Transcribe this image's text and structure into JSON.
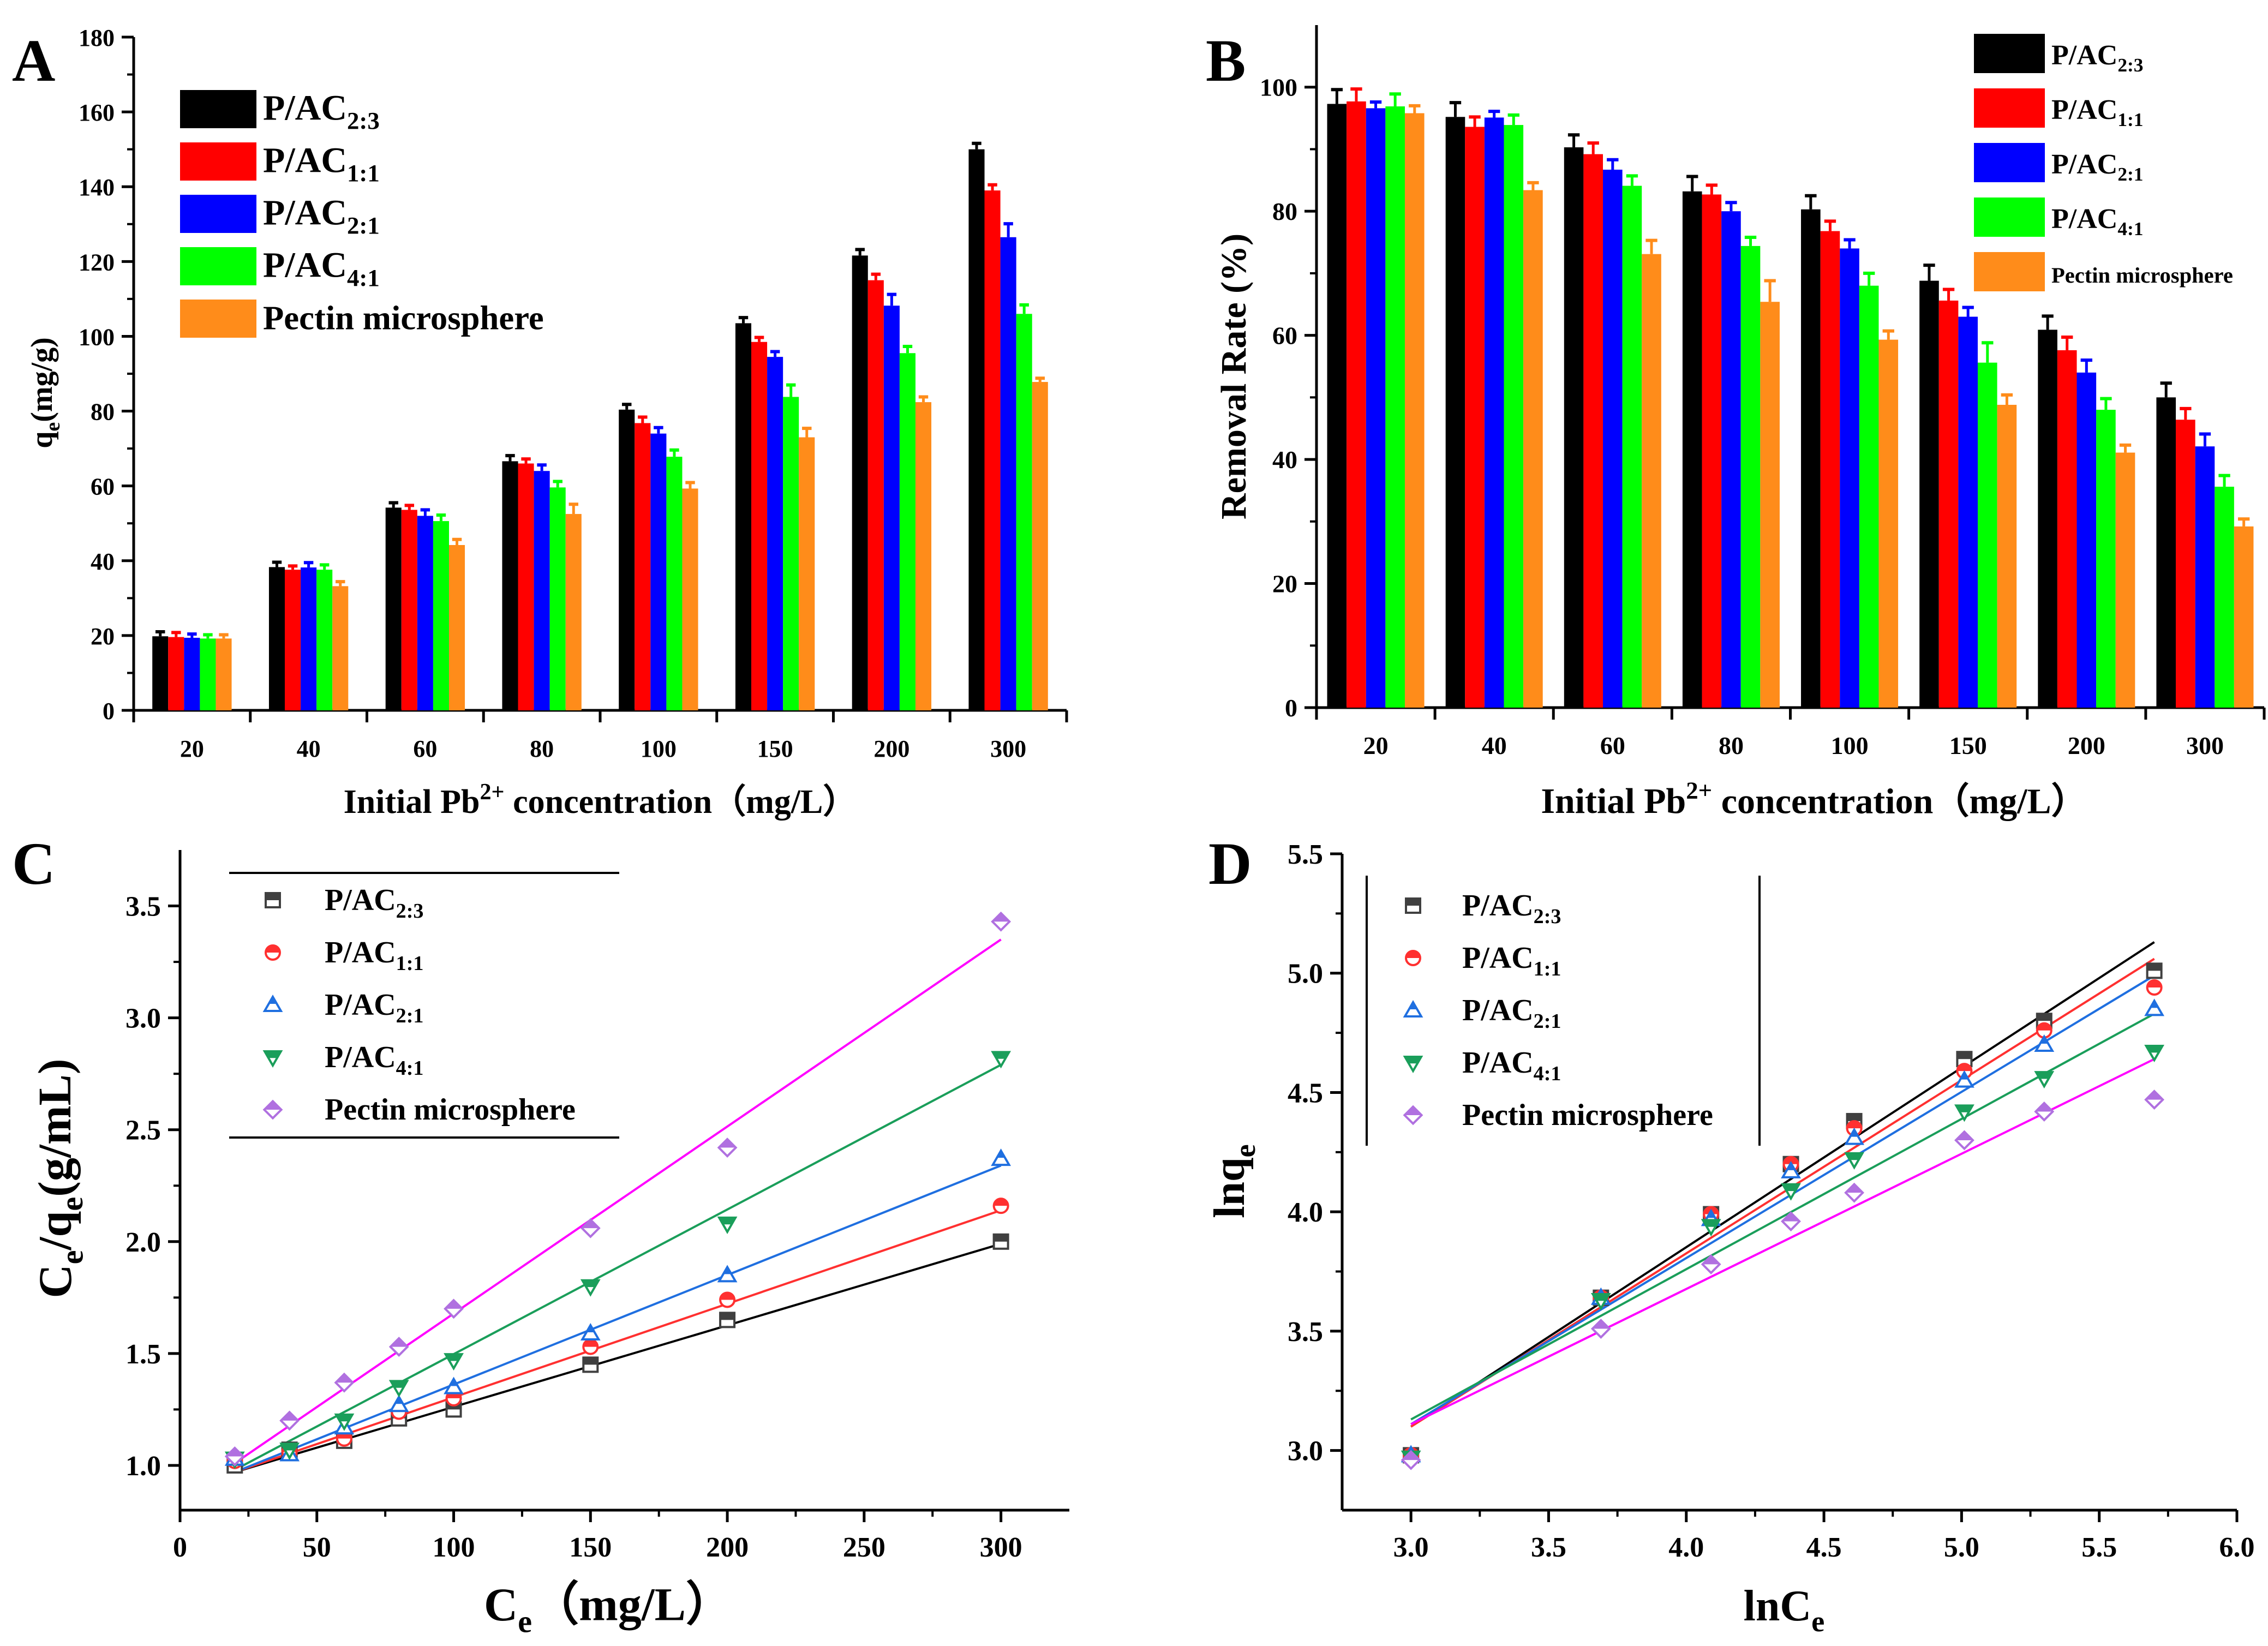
{
  "colors": {
    "P/AC 2:3": "#000000",
    "P/AC 1:1": "#ff0000",
    "P/AC 2:1": "#0000ff",
    "P/AC 4:1": "#00ff00",
    "Pectin microsphere": "#ff8c1a"
  },
  "chart_data": [
    {
      "panel": "A",
      "type": "bar",
      "title": "",
      "xlabel": "Initial Pb²⁺ concentration（mg/L）",
      "ylabel": "qe(mg/g)",
      "ylim": [
        0,
        180
      ],
      "yticks": [
        0,
        20,
        40,
        60,
        80,
        100,
        120,
        140,
        160,
        180
      ],
      "categories": [
        "20",
        "40",
        "60",
        "80",
        "100",
        "150",
        "200",
        "300"
      ],
      "legend_position": "top-left",
      "series": [
        {
          "name": "P/AC 2:3",
          "base": "P/AC",
          "sub": "2:3",
          "values": [
            19.8,
            38.3,
            54.2,
            66.6,
            80.4,
            103.5,
            121.6,
            150.0
          ],
          "errors": [
            1.2,
            1.3,
            1.3,
            1.5,
            1.4,
            1.5,
            1.6,
            1.6
          ]
        },
        {
          "name": "P/AC 1:1",
          "base": "P/AC",
          "sub": "1:1",
          "values": [
            19.6,
            37.6,
            53.6,
            66.0,
            76.8,
            98.5,
            115.0,
            139.0
          ],
          "errors": [
            1.2,
            1.0,
            1.2,
            1.2,
            1.6,
            1.2,
            1.6,
            1.5
          ]
        },
        {
          "name": "P/AC 2:1",
          "base": "P/AC",
          "sub": "2:1",
          "values": [
            19.4,
            38.2,
            52.0,
            64.0,
            74.0,
            94.5,
            108.2,
            126.5
          ],
          "errors": [
            1.0,
            1.3,
            1.6,
            1.6,
            1.6,
            1.4,
            3.0,
            3.6
          ]
        },
        {
          "name": "P/AC 4:1",
          "base": "P/AC",
          "sub": "4:1",
          "values": [
            19.2,
            37.6,
            50.6,
            59.6,
            67.8,
            83.8,
            95.5,
            106.0
          ],
          "errors": [
            1.0,
            1.3,
            1.6,
            1.6,
            1.8,
            3.2,
            1.8,
            2.4
          ]
        },
        {
          "name": "Pectin microsphere",
          "base": "Pectin microsphere",
          "sub": "",
          "values": [
            19.2,
            33.2,
            44.2,
            52.5,
            59.3,
            73.0,
            82.4,
            87.8
          ],
          "errors": [
            1.0,
            1.2,
            1.5,
            2.6,
            1.6,
            2.4,
            1.4,
            1.0
          ]
        }
      ]
    },
    {
      "panel": "B",
      "type": "bar",
      "title": "",
      "xlabel": "Initial Pb²⁺ concentration（mg/L）",
      "ylabel": "Removal Rate (%)",
      "ylim": [
        0,
        110
      ],
      "yticks": [
        0,
        20,
        40,
        60,
        80,
        100
      ],
      "categories": [
        "20",
        "40",
        "60",
        "80",
        "100",
        "150",
        "200",
        "300"
      ],
      "legend_position": "top-right",
      "series": [
        {
          "name": "P/AC 2:3",
          "base": "P/AC",
          "sub": "2:3",
          "values": [
            97.3,
            95.2,
            90.3,
            83.2,
            80.3,
            68.8,
            60.9,
            50.0
          ],
          "errors": [
            2.3,
            2.3,
            2.0,
            2.4,
            2.2,
            2.5,
            2.2,
            2.3
          ]
        },
        {
          "name": "P/AC 1:1",
          "base": "P/AC",
          "sub": "1:1",
          "values": [
            97.7,
            93.6,
            89.2,
            82.7,
            76.8,
            65.6,
            57.6,
            46.4
          ],
          "errors": [
            2.0,
            1.6,
            1.8,
            1.5,
            1.6,
            1.8,
            2.1,
            1.8
          ]
        },
        {
          "name": "P/AC 2:1",
          "base": "P/AC",
          "sub": "2:1",
          "values": [
            96.6,
            95.1,
            86.7,
            80.0,
            74.0,
            63.0,
            54.0,
            42.1
          ],
          "errors": [
            1.0,
            1.0,
            1.6,
            1.4,
            1.4,
            1.5,
            2.0,
            2.0
          ]
        },
        {
          "name": "P/AC 4:1",
          "base": "P/AC",
          "sub": "4:1",
          "values": [
            96.9,
            93.9,
            84.1,
            74.4,
            68.0,
            55.6,
            48.0,
            35.6
          ],
          "errors": [
            2.0,
            1.6,
            1.6,
            1.4,
            2.0,
            3.2,
            1.8,
            1.8
          ]
        },
        {
          "name": "Pectin microsphere",
          "base": "Pectin microsphere",
          "sub": "",
          "values": [
            95.8,
            83.4,
            73.1,
            65.4,
            59.3,
            48.8,
            41.1,
            29.2
          ],
          "errors": [
            1.2,
            1.2,
            2.2,
            3.4,
            1.4,
            1.6,
            1.2,
            1.2
          ]
        }
      ]
    },
    {
      "panel": "C",
      "type": "scatter",
      "title": "",
      "xlabel": "Ce（mg/L）",
      "ylabel": "Ce/qe(g/mL)",
      "xlim": [
        0,
        325
      ],
      "ylim": [
        0.8,
        3.75
      ],
      "xticks": [
        0,
        50,
        100,
        150,
        200,
        250,
        300
      ],
      "yticks": [
        1.0,
        1.5,
        2.0,
        2.5,
        3.0,
        3.5
      ],
      "legend_position": "top-left",
      "series": [
        {
          "name": "P/AC 2:3",
          "base": "P/AC",
          "sub": "2:3",
          "marker": "square",
          "color": "#404040",
          "x": [
            20,
            40,
            60,
            80,
            100,
            150,
            200,
            300
          ],
          "y": [
            1.0,
            1.07,
            1.11,
            1.21,
            1.25,
            1.45,
            1.65,
            2.0
          ],
          "fit": {
            "x": [
              20,
              300
            ],
            "y": [
              0.97,
              1.99
            ]
          }
        },
        {
          "name": "P/AC 1:1",
          "base": "P/AC",
          "sub": "1:1",
          "marker": "circle",
          "color": "#ff3030",
          "x": [
            20,
            40,
            60,
            80,
            100,
            150,
            200,
            300
          ],
          "y": [
            1.02,
            1.06,
            1.12,
            1.24,
            1.3,
            1.53,
            1.74,
            2.16
          ],
          "fit": {
            "x": [
              20,
              300
            ],
            "y": [
              0.97,
              2.14
            ]
          }
        },
        {
          "name": "P/AC 2:1",
          "base": "P/AC",
          "sub": "2:1",
          "marker": "triangle-up",
          "color": "#1f6fe0",
          "x": [
            20,
            40,
            60,
            80,
            100,
            150,
            200,
            300
          ],
          "y": [
            1.03,
            1.05,
            1.17,
            1.27,
            1.35,
            1.59,
            1.85,
            2.37
          ],
          "fit": {
            "x": [
              20,
              300
            ],
            "y": [
              0.97,
              2.34
            ]
          }
        },
        {
          "name": "P/AC 4:1",
          "base": "P/AC",
          "sub": "4:1",
          "marker": "triangle-down",
          "color": "#1a9e5a",
          "x": [
            20,
            40,
            60,
            80,
            100,
            150,
            200,
            300
          ],
          "y": [
            1.03,
            1.07,
            1.2,
            1.35,
            1.47,
            1.8,
            2.08,
            2.82
          ],
          "fit": {
            "x": [
              20,
              300
            ],
            "y": [
              0.98,
              2.79
            ]
          }
        },
        {
          "name": "Pectin microsphere",
          "base": "Pectin microsphere",
          "sub": "",
          "marker": "diamond",
          "color": "#b070e0",
          "x": [
            20,
            40,
            60,
            80,
            100,
            150,
            200,
            300
          ],
          "y": [
            1.04,
            1.2,
            1.37,
            1.53,
            1.7,
            2.06,
            2.42,
            3.43
          ],
          "fit": {
            "x": [
              20,
              300
            ],
            "y": [
              1.01,
              3.35
            ]
          },
          "fit_color": "#ff00ff"
        }
      ]
    },
    {
      "panel": "D",
      "type": "scatter",
      "title": "",
      "xlabel": "lnCe",
      "ylabel": "lnqe",
      "xlim": [
        2.75,
        6.0
      ],
      "ylim": [
        2.75,
        5.5
      ],
      "xticks": [
        3.0,
        3.5,
        4.0,
        4.5,
        5.0,
        5.5,
        6.0
      ],
      "yticks": [
        3.0,
        3.5,
        4.0,
        4.5,
        5.0,
        5.5
      ],
      "legend_position": "top-left",
      "series": [
        {
          "name": "P/AC 2:3",
          "base": "P/AC",
          "sub": "2:3",
          "marker": "square",
          "color": "#404040",
          "x": [
            3.0,
            3.69,
            4.09,
            4.38,
            4.61,
            5.01,
            5.3,
            5.7
          ],
          "y": [
            2.98,
            3.64,
            3.99,
            4.2,
            4.38,
            4.64,
            4.8,
            5.01
          ],
          "fit": {
            "x": [
              3.0,
              5.7
            ],
            "y": [
              3.1,
              5.13
            ]
          }
        },
        {
          "name": "P/AC 1:1",
          "base": "P/AC",
          "sub": "1:1",
          "marker": "circle",
          "color": "#ff3030",
          "x": [
            3.0,
            3.69,
            4.09,
            4.38,
            4.61,
            5.01,
            5.3,
            5.7
          ],
          "y": [
            2.98,
            3.64,
            3.99,
            4.2,
            4.35,
            4.59,
            4.76,
            4.94
          ],
          "fit": {
            "x": [
              3.0,
              5.7
            ],
            "y": [
              3.1,
              5.06
            ]
          }
        },
        {
          "name": "P/AC 2:1",
          "base": "P/AC",
          "sub": "2:1",
          "marker": "triangle-up",
          "color": "#1f6fe0",
          "x": [
            3.0,
            3.69,
            4.09,
            4.38,
            4.61,
            5.01,
            5.3,
            5.7
          ],
          "y": [
            2.98,
            3.64,
            3.97,
            4.17,
            4.31,
            4.55,
            4.7,
            4.85
          ],
          "fit": {
            "x": [
              3.0,
              5.7
            ],
            "y": [
              3.11,
              4.99
            ]
          }
        },
        {
          "name": "P/AC 4:1",
          "base": "P/AC",
          "sub": "4:1",
          "marker": "triangle-down",
          "color": "#1a9e5a",
          "x": [
            3.0,
            3.69,
            4.09,
            4.38,
            4.61,
            5.01,
            5.3,
            5.7
          ],
          "y": [
            2.97,
            3.63,
            3.94,
            4.09,
            4.22,
            4.42,
            4.56,
            4.67
          ],
          "fit": {
            "x": [
              3.0,
              5.7
            ],
            "y": [
              3.13,
              4.83
            ]
          }
        },
        {
          "name": "Pectin microsphere",
          "base": "Pectin microsphere",
          "sub": "",
          "marker": "diamond",
          "color": "#b070e0",
          "x": [
            3.0,
            3.69,
            4.09,
            4.38,
            4.61,
            5.01,
            5.3,
            5.7
          ],
          "y": [
            2.96,
            3.51,
            3.78,
            3.96,
            4.08,
            4.3,
            4.42,
            4.47
          ],
          "fit": {
            "x": [
              3.0,
              5.7
            ],
            "y": [
              3.11,
              4.64
            ]
          },
          "fit_color": "#ff00ff"
        }
      ]
    }
  ],
  "panel_labels": {
    "a": "A",
    "b": "B",
    "c": "C",
    "d": "D"
  }
}
